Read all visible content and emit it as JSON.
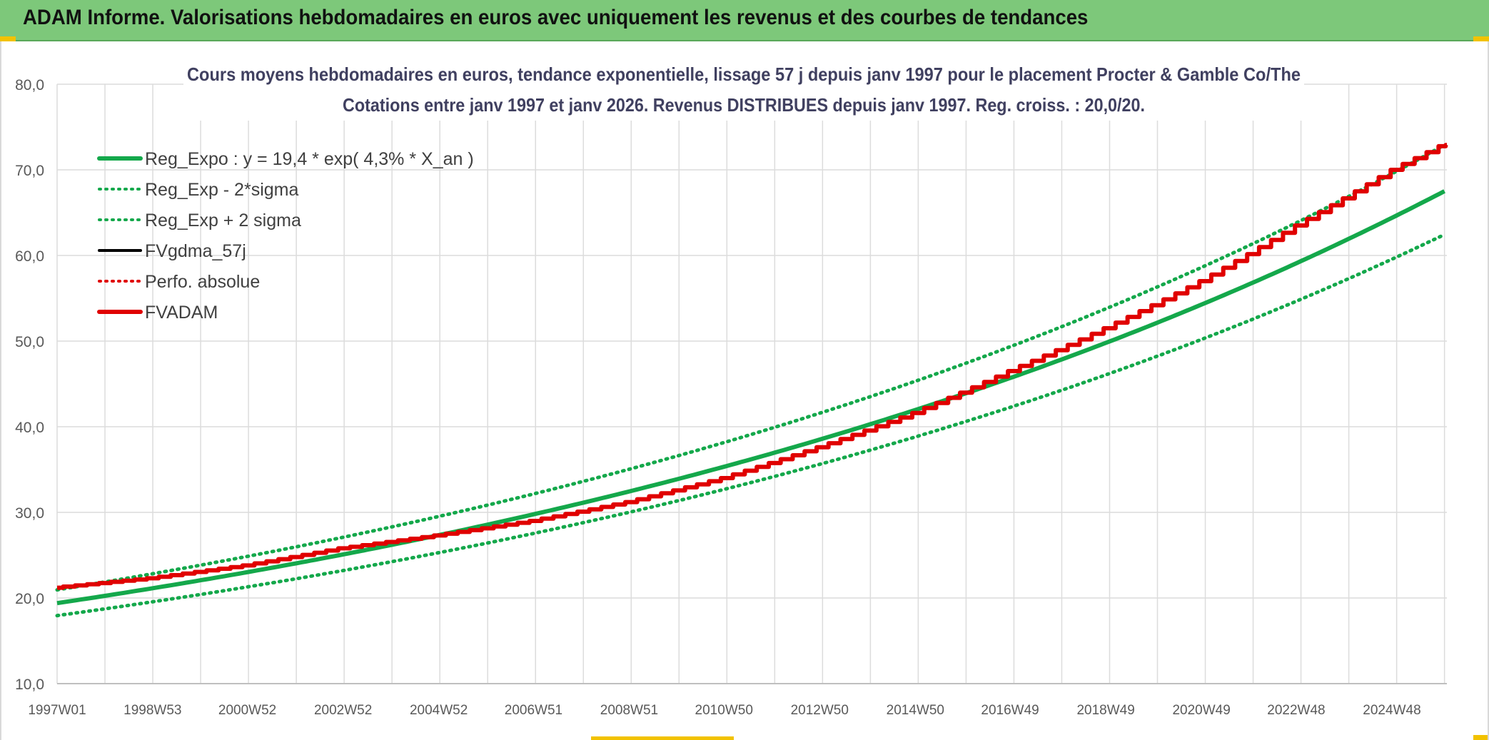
{
  "header": {
    "title": "ADAM Informe. Valorisations hebdomadaires en euros avec uniquement les revenus et des courbes de tendances"
  },
  "chart_data": {
    "type": "line",
    "title_line1": "Cours moyens hebdomadaires en euros, tendance exponentielle, lissage 57 j depuis janv 1997 pour le placement Procter & Gamble Co/The",
    "title_line2": "Cotations entre janv 1997 et janv 2026. Revenus DISTRIBUES depuis janv 1997. Reg. croiss. : 20,0/20.",
    "ylim": [
      10,
      80
    ],
    "y_ticks": [
      "10,0",
      "20,0",
      "30,0",
      "40,0",
      "50,0",
      "60,0",
      "70,0",
      "80,0"
    ],
    "x_range_years": [
      1997.0,
      2026.05
    ],
    "x_tick_labels": [
      "1997W01",
      "1998W53",
      "2000W52",
      "2002W52",
      "2004W52",
      "2006W51",
      "2008W51",
      "2010W50",
      "2012W50",
      "2014W50",
      "2016W49",
      "2018W49",
      "2020W49",
      "2022W48",
      "2024W48"
    ],
    "regression": {
      "a": 19.4,
      "rate": 0.043,
      "lower_factor": 0.925,
      "upper_factor": 1.08
    },
    "fvadam_points": [
      [
        1997.0,
        21.2
      ],
      [
        1999.0,
        22.3
      ],
      [
        2001.0,
        23.8
      ],
      [
        2003.0,
        25.8
      ],
      [
        2005.0,
        27.3
      ],
      [
        2007.0,
        29.0
      ],
      [
        2009.0,
        31.2
      ],
      [
        2011.0,
        34.0
      ],
      [
        2013.0,
        37.6
      ],
      [
        2015.0,
        41.6
      ],
      [
        2017.0,
        46.5
      ],
      [
        2019.0,
        51.5
      ],
      [
        2021.0,
        57.0
      ],
      [
        2023.0,
        63.5
      ],
      [
        2025.0,
        70.0
      ],
      [
        2026.05,
        72.9
      ]
    ],
    "legend": [
      {
        "label": "Reg_Expo : y = 19,4 * exp( 4,3% *  X_an )",
        "color": "#14a84b",
        "style": "solid"
      },
      {
        "label": "Reg_Exp - 2*sigma",
        "color": "#14a84b",
        "style": "dotted"
      },
      {
        "label": "Reg_Exp + 2 sigma",
        "color": "#14a84b",
        "style": "dotted"
      },
      {
        "label": "FVgdma_57j",
        "color": "#000000",
        "style": "solid"
      },
      {
        "label": "Perfo. absolue",
        "color": "#e00000",
        "style": "dotted"
      },
      {
        "label": "FVADAM",
        "color": "#e00000",
        "style": "solid"
      }
    ],
    "colors": {
      "green": "#14a84b",
      "red": "#e00000",
      "grid": "#dcdcdc",
      "axis_text": "#595959",
      "title_text": "#404060"
    }
  }
}
